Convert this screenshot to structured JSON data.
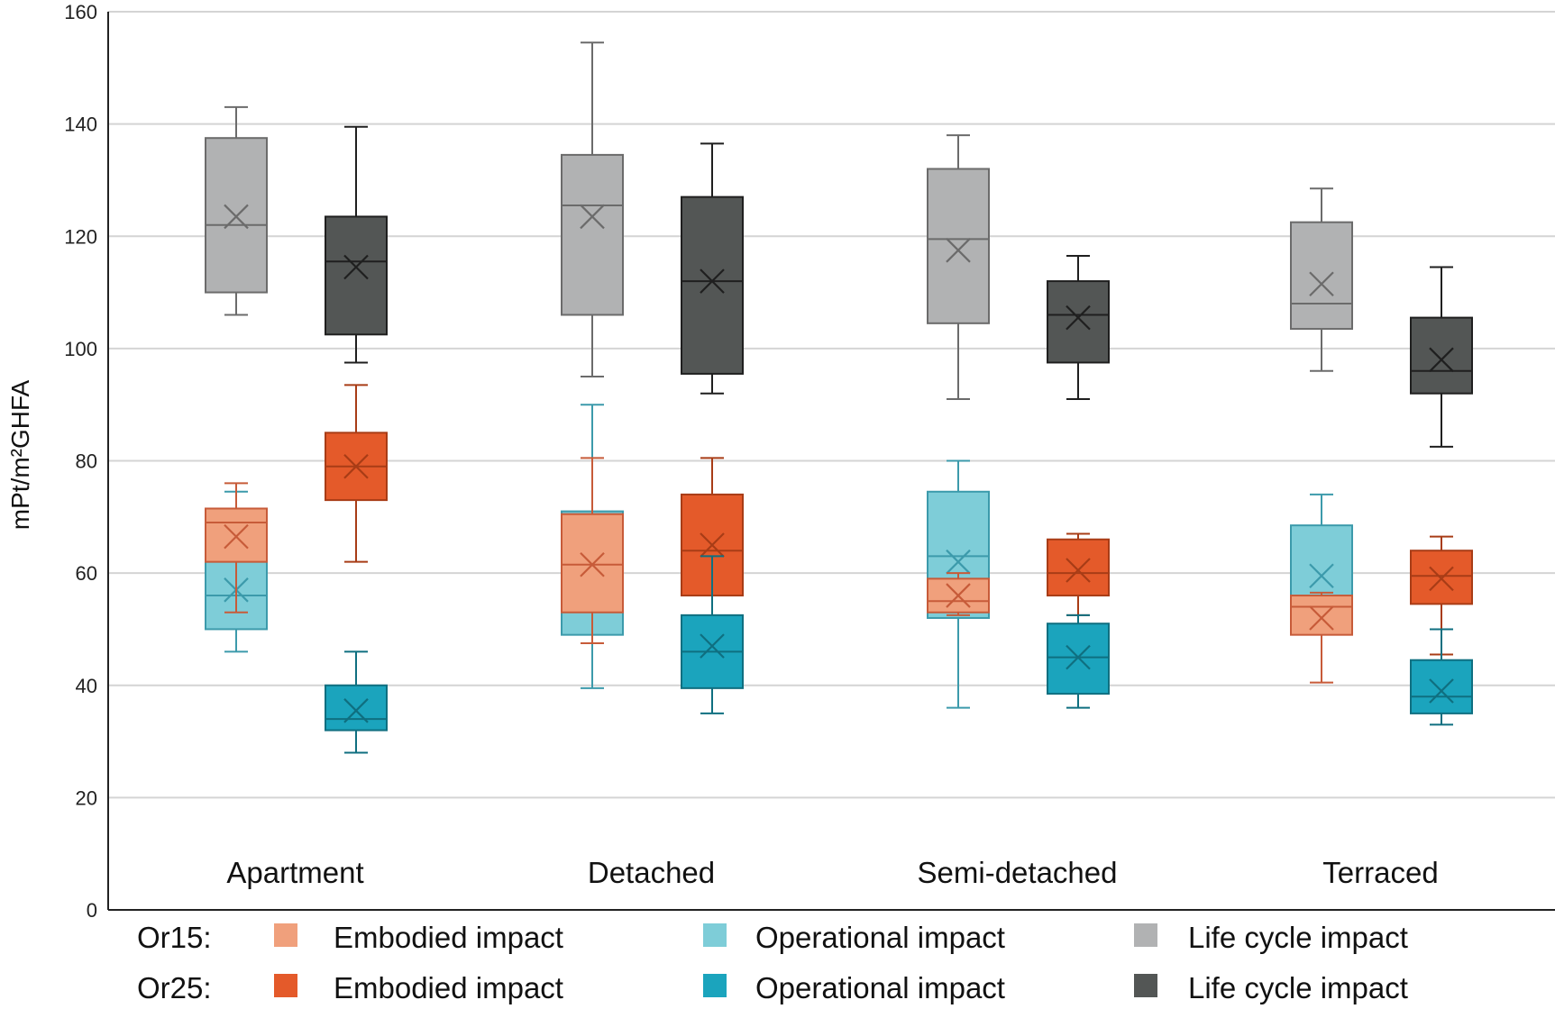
{
  "chart_data": {
    "type": "boxplot",
    "title": "",
    "xlabel": "",
    "ylabel": "mPt/m²GHFA",
    "ylim": [
      0,
      160
    ],
    "yticks": [
      0,
      20,
      40,
      60,
      80,
      100,
      120,
      140,
      160
    ],
    "grid": true,
    "categories": [
      "Apartment",
      "Detached",
      "Semi-detached",
      "Terraced"
    ],
    "legend": {
      "placement": "bottom",
      "rows": [
        {
          "label": "Or15:",
          "items": [
            {
              "series": "or15_embodied",
              "text": "Embodied impact",
              "color": "#f0a07c"
            },
            {
              "series": "or15_operational",
              "text": "Operational impact",
              "color": "#7ecdd8"
            },
            {
              "series": "or15_lifecycle",
              "text": "Life cycle impact",
              "color": "#b1b2b3"
            }
          ]
        },
        {
          "label": "Or25:",
          "items": [
            {
              "series": "or25_embodied",
              "text": "Embodied impact",
              "color": "#e45a2a"
            },
            {
              "series": "or25_operational",
              "text": "Operational impact",
              "color": "#1ba4bd"
            },
            {
              "series": "or25_lifecycle",
              "text": "Life cycle impact",
              "color": "#535655"
            }
          ]
        }
      ]
    },
    "series": [
      {
        "id": "or15_lifecycle",
        "fill": "#b1b2b3",
        "stroke": "#6b6b6b",
        "slot": 0,
        "boxes": [
          {
            "min": 106,
            "q1": 110,
            "median": 122,
            "q3": 137.5,
            "max": 143,
            "mean": 123.5
          },
          {
            "min": 95,
            "q1": 106,
            "median": 125.5,
            "q3": 134.5,
            "max": 154.5,
            "mean": 123.5
          },
          {
            "min": 91,
            "q1": 104.5,
            "median": 119.5,
            "q3": 132,
            "max": 138,
            "mean": 117.5
          },
          {
            "min": 96,
            "q1": 103.5,
            "median": 108,
            "q3": 122.5,
            "max": 128.5,
            "mean": 111.5
          }
        ]
      },
      {
        "id": "or25_lifecycle",
        "fill": "#535655",
        "stroke": "#1f1f1f",
        "slot": 1,
        "boxes": [
          {
            "min": 97.5,
            "q1": 102.5,
            "median": 115.5,
            "q3": 123.5,
            "max": 139.5,
            "mean": 114.5
          },
          {
            "min": 92,
            "q1": 95.5,
            "median": 112,
            "q3": 127,
            "max": 136.5,
            "mean": 112
          },
          {
            "min": 91,
            "q1": 97.5,
            "median": 106,
            "q3": 112,
            "max": 116.5,
            "mean": 105.5
          },
          {
            "min": 82.5,
            "q1": 92,
            "median": 96,
            "q3": 105.5,
            "max": 114.5,
            "mean": 98
          }
        ]
      },
      {
        "id": "or15_operational",
        "fill": "#7ecdd8",
        "stroke": "#3c9aab",
        "slot": 0,
        "boxes": [
          {
            "min": 46,
            "q1": 50,
            "median": 56,
            "q3": 63,
            "max": 74.5,
            "mean": 57
          },
          {
            "min": 39.5,
            "q1": 49,
            "median": 63.5,
            "q3": 71,
            "max": 90,
            "mean": 62
          },
          {
            "min": 36,
            "q1": 52,
            "median": 63,
            "q3": 74.5,
            "max": 80,
            "mean": 62
          },
          {
            "min": 50.5,
            "q1": 54,
            "median": 55.5,
            "q3": 68.5,
            "max": 74,
            "mean": 59.5
          }
        ]
      },
      {
        "id": "or15_embodied",
        "fill": "#f0a07c",
        "stroke": "#c75b39",
        "slot": 0,
        "boxes": [
          {
            "min": 53,
            "q1": 62,
            "median": 69,
            "q3": 71.5,
            "max": 76,
            "mean": 66.5
          },
          {
            "min": 47.5,
            "q1": 53,
            "median": 61.5,
            "q3": 70.5,
            "max": 80.5,
            "mean": 61.5
          },
          {
            "min": 52.5,
            "q1": 53,
            "median": 55,
            "q3": 59,
            "max": 60,
            "mean": 56
          },
          {
            "min": 40.5,
            "q1": 49,
            "median": 54,
            "q3": 56,
            "max": 56.5,
            "mean": 52
          }
        ]
      },
      {
        "id": "or25_embodied",
        "fill": "#e45a2a",
        "stroke": "#a83c16",
        "slot": 1,
        "boxes": [
          {
            "min": 62,
            "q1": 73,
            "median": 79,
            "q3": 85,
            "max": 93.5,
            "mean": 79
          },
          {
            "min": 50,
            "q1": 56,
            "median": 64,
            "q3": 74,
            "max": 80.5,
            "mean": 65
          },
          {
            "min": 52.5,
            "q1": 56,
            "median": 60,
            "q3": 66,
            "max": 67,
            "mean": 60.5
          },
          {
            "min": 45.5,
            "q1": 54.5,
            "median": 59.5,
            "q3": 64,
            "max": 66.5,
            "mean": 59
          }
        ]
      },
      {
        "id": "or25_operational",
        "fill": "#1ba4bd",
        "stroke": "#0f6f80",
        "slot": 1,
        "boxes": [
          {
            "min": 28,
            "q1": 32,
            "median": 34,
            "q3": 40,
            "max": 46,
            "mean": 35.5
          },
          {
            "min": 35,
            "q1": 39.5,
            "median": 46,
            "q3": 52.5,
            "max": 63,
            "mean": 47
          },
          {
            "min": 36,
            "q1": 38.5,
            "median": 45,
            "q3": 51,
            "max": 52.5,
            "mean": 45
          },
          {
            "min": 33,
            "q1": 35,
            "median": 38,
            "q3": 44.5,
            "max": 50,
            "mean": 39
          }
        ]
      }
    ]
  }
}
